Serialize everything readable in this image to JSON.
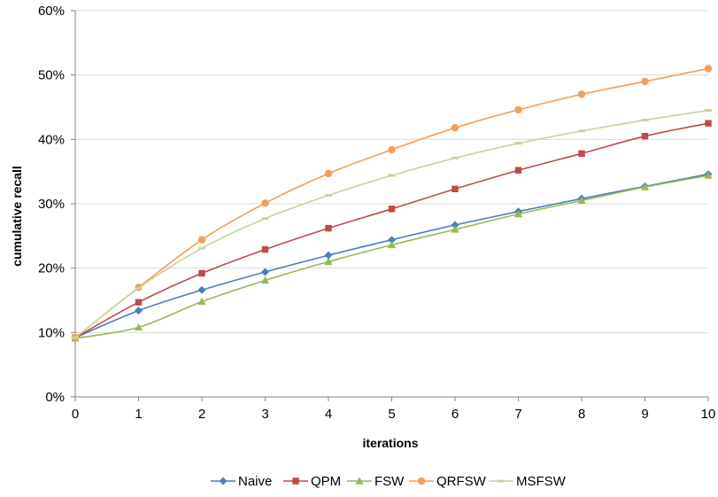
{
  "chart_data": {
    "type": "line",
    "title": "",
    "xlabel": "iterations",
    "ylabel": "cumulative recall",
    "x": [
      0,
      1,
      2,
      3,
      4,
      5,
      6,
      7,
      8,
      9,
      10
    ],
    "xlim": [
      0,
      10
    ],
    "ylim": [
      0,
      60
    ],
    "yticks": [
      0,
      10,
      20,
      30,
      40,
      50,
      60
    ],
    "ytick_labels": [
      "0%",
      "10%",
      "20%",
      "30%",
      "40%",
      "50%",
      "60%"
    ],
    "xtick_labels": [
      "0",
      "1",
      "2",
      "3",
      "4",
      "5",
      "6",
      "7",
      "8",
      "9",
      "10"
    ],
    "grid": "horizontal",
    "legend_position": "bottom",
    "series": [
      {
        "name": "Naive",
        "marker": "diamond",
        "color": "#4a7ebb",
        "values": [
          9.2,
          13.4,
          16.6,
          19.4,
          22.0,
          24.4,
          26.7,
          28.8,
          30.8,
          32.7,
          34.6
        ]
      },
      {
        "name": "QPM",
        "marker": "square",
        "color": "#be4b48",
        "values": [
          9.2,
          14.7,
          19.2,
          22.9,
          26.2,
          29.2,
          32.3,
          35.2,
          37.8,
          40.5,
          42.5
        ]
      },
      {
        "name": "FSW",
        "marker": "triangle",
        "color": "#98b954",
        "values": [
          9.1,
          10.8,
          14.8,
          18.1,
          21.0,
          23.6,
          26.0,
          28.4,
          30.5,
          32.6,
          34.4
        ]
      },
      {
        "name": "QRFSW",
        "marker": "circle",
        "color": "#f59d56",
        "values": [
          9.2,
          17.0,
          24.4,
          30.1,
          34.7,
          38.4,
          41.8,
          44.6,
          47.0,
          49.0,
          51.0
        ]
      },
      {
        "name": "MSFSW",
        "marker": "dash",
        "color": "#c3d69b",
        "values": [
          9.2,
          16.9,
          23.1,
          27.7,
          31.3,
          34.4,
          37.1,
          39.4,
          41.3,
          43.0,
          44.5
        ]
      }
    ]
  }
}
